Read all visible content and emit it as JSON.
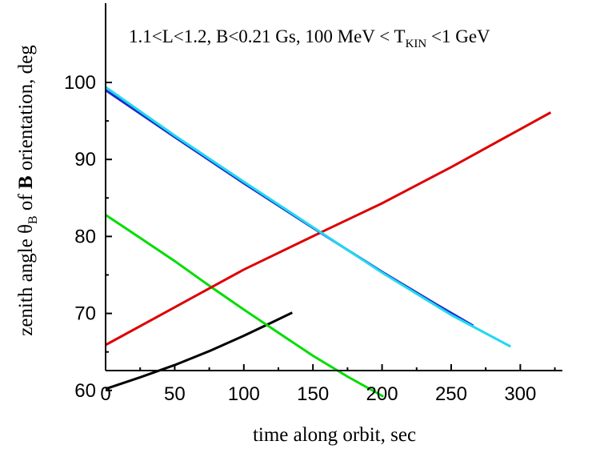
{
  "chart_data": {
    "type": "line",
    "title": "",
    "annotation": {
      "text_before": "1.1<L<1.2, B<0.21 Gs, 100 MeV < T",
      "subscript": "KIN",
      "text_after": " <1 GeV"
    },
    "xlabel": "time along orbit, sec",
    "ylabel": {
      "part1": "zenith angle θ",
      "sub": "B",
      "part2": " of ",
      "bold": "B",
      "part3": " orientation, deg"
    },
    "xlim": [
      0,
      330
    ],
    "ylim": [
      55,
      106
    ],
    "x_ticks": [
      0,
      50,
      100,
      150,
      200,
      250,
      300
    ],
    "x_tick_labels": [
      "0",
      "50",
      "100",
      "150",
      "200",
      "250",
      "300"
    ],
    "y_ticks": [
      60,
      70,
      80,
      90,
      100
    ],
    "y_tick_labels": [
      "60",
      "70",
      "80",
      "90",
      "100"
    ],
    "grid": false,
    "legend": "none",
    "series": [
      {
        "color": "#000000",
        "points": [
          [
            0,
            60.2
          ],
          [
            25,
            61.7
          ],
          [
            50,
            63.3
          ],
          [
            75,
            65.1
          ],
          [
            100,
            67.1
          ],
          [
            120,
            68.8
          ],
          [
            135,
            70.1
          ]
        ]
      },
      {
        "color": "#00dd00",
        "points": [
          [
            0,
            82.8
          ],
          [
            25,
            79.8
          ],
          [
            50,
            76.8
          ],
          [
            75,
            73.6
          ],
          [
            100,
            70.5
          ],
          [
            125,
            67.5
          ],
          [
            150,
            64.5
          ],
          [
            175,
            61.8
          ],
          [
            201,
            59.2
          ]
        ]
      },
      {
        "color": "#dd0000",
        "points": [
          [
            0,
            65.9
          ],
          [
            50,
            70.8
          ],
          [
            100,
            75.7
          ],
          [
            160,
            80.9
          ],
          [
            200,
            84.3
          ],
          [
            250,
            89.0
          ],
          [
            322,
            96.1
          ]
        ]
      },
      {
        "color": "#1a2ccc",
        "points": [
          [
            0,
            99.0
          ],
          [
            50,
            92.9
          ],
          [
            100,
            86.9
          ],
          [
            150,
            81.1
          ],
          [
            200,
            75.4
          ],
          [
            240,
            71.1
          ],
          [
            266,
            68.4
          ]
        ]
      },
      {
        "color": "#22d8f0",
        "points": [
          [
            0,
            99.4
          ],
          [
            50,
            93.1
          ],
          [
            100,
            87.1
          ],
          [
            150,
            81.2
          ],
          [
            200,
            75.3
          ],
          [
            250,
            69.8
          ],
          [
            293,
            65.7
          ]
        ]
      }
    ]
  }
}
